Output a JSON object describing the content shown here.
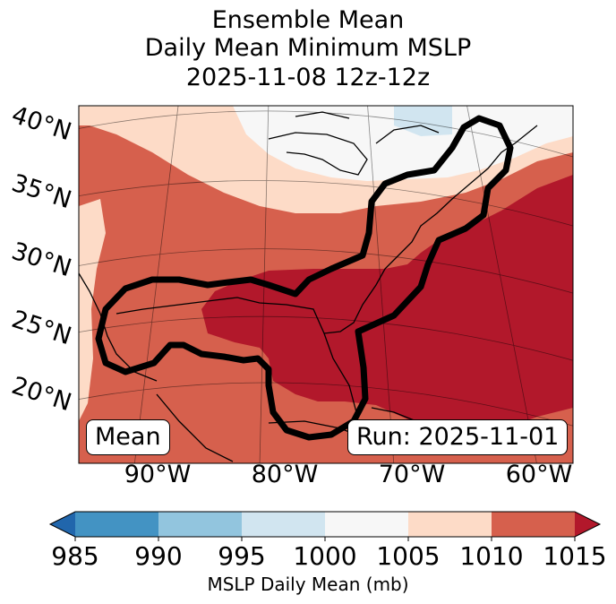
{
  "title": {
    "line1": "Ensemble Mean",
    "line2": "Daily Mean Minimum MSLP",
    "line3": "2025-11-08 12z-12z"
  },
  "map": {
    "lat_labels": [
      "40°N",
      "35°N",
      "30°N",
      "25°N",
      "20°N"
    ],
    "lon_labels": [
      "90°W",
      "80°W",
      "70°W",
      "60°W"
    ],
    "mean_box": "Mean",
    "run_box": "Run: 2025-11-01"
  },
  "colorbar": {
    "ticks": [
      "985",
      "990",
      "995",
      "1000",
      "1005",
      "1010",
      "1015"
    ],
    "label": "MSLP Daily Mean (mb)",
    "colors": {
      "under": "#2166ac",
      "985-990": "#4393c3",
      "990-995": "#92c5de",
      "995-1000": "#d1e5f0",
      "1000-1005": "#f7f7f7",
      "1005-1010": "#fddbc7",
      "1010-1015": "#d6604d",
      "over": "#b2182b"
    }
  }
}
